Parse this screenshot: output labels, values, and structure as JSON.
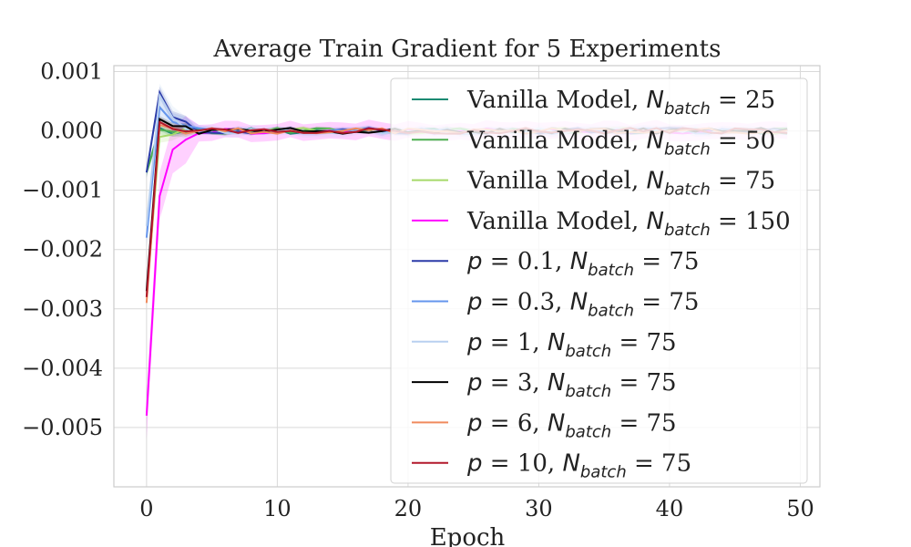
{
  "chart_data": {
    "type": "line",
    "title": "Average Train Gradient for 5 Experiments",
    "xlabel": "Epoch",
    "ylabel": "",
    "xlim": [
      -2.5,
      51.5
    ],
    "ylim": [
      -0.006,
      0.0011
    ],
    "xticks": [
      0,
      10,
      20,
      30,
      40,
      50
    ],
    "xtick_labels": [
      "0",
      "10",
      "20",
      "30",
      "40",
      "50"
    ],
    "yticks": [
      0.001,
      0.0,
      -0.001,
      -0.002,
      -0.003,
      -0.004,
      -0.005
    ],
    "ytick_labels": [
      "0.001",
      "0.000",
      "−0.001",
      "−0.002",
      "−0.003",
      "−0.004",
      "−0.005"
    ],
    "grid": true,
    "legend_placement": "upper-right",
    "series": [
      {
        "legend": "Vanilla Model, N_batch = 25",
        "color": "#1a8a72",
        "start": -0.0007,
        "peak": 5e-05,
        "band": 5e-05
      },
      {
        "legend": "Vanilla Model, N_batch = 50",
        "color": "#4caf50",
        "start": -0.0007,
        "peak": 2e-05,
        "band": 8e-05
      },
      {
        "legend": "Vanilla Model, N_batch = 75",
        "color": "#a6d96a",
        "start": -0.0028,
        "peak": -0.0001,
        "band": 0.0001
      },
      {
        "legend": "Vanilla Model, N_batch = 150",
        "color": "#ff00ff",
        "start": -0.0048,
        "peak": -0.0011,
        "band": 0.0004
      },
      {
        "legend": "p = 0.1, N_batch = 75",
        "color": "#2b3aa8",
        "start": -0.0007,
        "peak": 0.00065,
        "band": 0.0001
      },
      {
        "legend": "p = 0.3, N_batch = 75",
        "color": "#6495ed",
        "start": -0.0018,
        "peak": 0.0004,
        "band": 0.00015
      },
      {
        "legend": "p = 1, N_batch = 75",
        "color": "#b8d0f0",
        "start": -0.0016,
        "peak": 0.0006,
        "band": 0.0002
      },
      {
        "legend": "p = 3, N_batch = 75",
        "color": "#000000",
        "start": -0.0027,
        "peak": 0.0002,
        "band": 5e-05
      },
      {
        "legend": "p = 6, N_batch = 75",
        "color": "#f08a5d",
        "start": -0.0029,
        "peak": 0.0001,
        "band": 5e-05
      },
      {
        "legend": "p = 10, N_batch = 75",
        "color": "#b2182b",
        "start": -0.0028,
        "peak": 0.00015,
        "band": 5e-05
      }
    ],
    "legend_items": [
      {
        "prefix": "Vanilla Model, ",
        "var": "N",
        "sub": "batch",
        "rest": " = 25"
      },
      {
        "prefix": "Vanilla Model, ",
        "var": "N",
        "sub": "batch",
        "rest": " = 50"
      },
      {
        "prefix": "Vanilla Model, ",
        "var": "N",
        "sub": "batch",
        "rest": " = 75"
      },
      {
        "prefix": "Vanilla Model, ",
        "var": "N",
        "sub": "batch",
        "rest": " = 150"
      },
      {
        "pvar": "p",
        "pval": " = 0.1, ",
        "var": "N",
        "sub": "batch",
        "rest": " = 75"
      },
      {
        "pvar": "p",
        "pval": " = 0.3, ",
        "var": "N",
        "sub": "batch",
        "rest": " = 75"
      },
      {
        "pvar": "p",
        "pval": " = 1, ",
        "var": "N",
        "sub": "batch",
        "rest": " = 75"
      },
      {
        "pvar": "p",
        "pval": " = 3, ",
        "var": "N",
        "sub": "batch",
        "rest": " = 75"
      },
      {
        "pvar": "p",
        "pval": " = 6, ",
        "var": "N",
        "sub": "batch",
        "rest": " = 75"
      },
      {
        "pvar": "p",
        "pval": " = 10, ",
        "var": "N",
        "sub": "batch",
        "rest": " = 75"
      }
    ]
  }
}
